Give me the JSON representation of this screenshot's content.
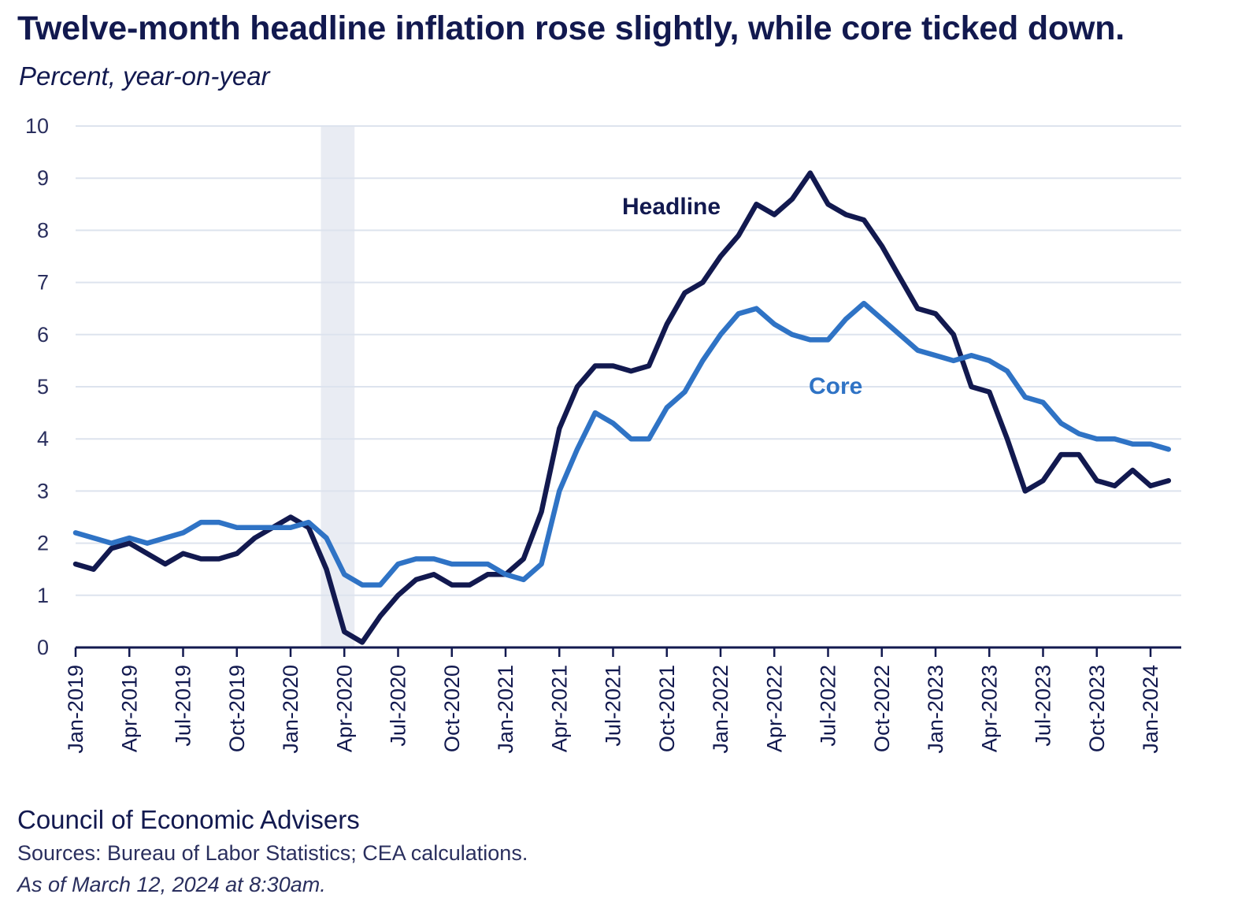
{
  "header": {
    "title": "Twelve-month headline inflation rose slightly, while core ticked down.",
    "subtitle": "Percent, year-on-year"
  },
  "footer": {
    "org": "Council of Economic Advisers",
    "sources": "Sources: Bureau of Labor Statistics; CEA calculations.",
    "as_of": "As of March 12, 2024 at 8:30am."
  },
  "colors": {
    "headline": "#12194f",
    "core": "#2f73c5",
    "grid": "#dde3ee",
    "recession": "#e9ecf3",
    "axis": "#12194f"
  },
  "chart_data": {
    "type": "line",
    "title": "Twelve-month headline inflation rose slightly, while core ticked down.",
    "ylabel": "Percent, year-on-year",
    "ylim": [
      0,
      10
    ],
    "yticks": [
      "0",
      "1",
      "2",
      "3",
      "4",
      "5",
      "6",
      "7",
      "8",
      "9",
      "10"
    ],
    "grid": true,
    "x": [
      "Jan-2019",
      "Feb-2019",
      "Mar-2019",
      "Apr-2019",
      "May-2019",
      "Jun-2019",
      "Jul-2019",
      "Aug-2019",
      "Sep-2019",
      "Oct-2019",
      "Nov-2019",
      "Dec-2019",
      "Jan-2020",
      "Feb-2020",
      "Mar-2020",
      "Apr-2020",
      "May-2020",
      "Jun-2020",
      "Jul-2020",
      "Aug-2020",
      "Sep-2020",
      "Oct-2020",
      "Nov-2020",
      "Dec-2020",
      "Jan-2021",
      "Feb-2021",
      "Mar-2021",
      "Apr-2021",
      "May-2021",
      "Jun-2021",
      "Jul-2021",
      "Aug-2021",
      "Sep-2021",
      "Oct-2021",
      "Nov-2021",
      "Dec-2021",
      "Jan-2022",
      "Feb-2022",
      "Mar-2022",
      "Apr-2022",
      "May-2022",
      "Jun-2022",
      "Jul-2022",
      "Aug-2022",
      "Sep-2022",
      "Oct-2022",
      "Nov-2022",
      "Dec-2022",
      "Jan-2023",
      "Feb-2023",
      "Mar-2023",
      "Apr-2023",
      "May-2023",
      "Jun-2023",
      "Jul-2023",
      "Aug-2023",
      "Sep-2023",
      "Oct-2023",
      "Nov-2023",
      "Dec-2023",
      "Jan-2024",
      "Feb-2024"
    ],
    "xtick_labels": [
      "Jan-2019",
      "Apr-2019",
      "Jul-2019",
      "Oct-2019",
      "Jan-2020",
      "Apr-2020",
      "Jul-2020",
      "Oct-2020",
      "Jan-2021",
      "Apr-2021",
      "Jul-2021",
      "Oct-2021",
      "Jan-2022",
      "Apr-2022",
      "Jul-2022",
      "Oct-2022",
      "Jan-2023",
      "Apr-2023",
      "Jul-2023",
      "Oct-2023",
      "Jan-2024"
    ],
    "shaded_region": [
      "Mar-2020",
      "Apr-2020"
    ],
    "series": [
      {
        "name": "Headline",
        "values": [
          1.6,
          1.5,
          1.9,
          2.0,
          1.8,
          1.6,
          1.8,
          1.7,
          1.7,
          1.8,
          2.1,
          2.3,
          2.5,
          2.3,
          1.5,
          0.3,
          0.1,
          0.6,
          1.0,
          1.3,
          1.4,
          1.2,
          1.2,
          1.4,
          1.4,
          1.7,
          2.6,
          4.2,
          5.0,
          5.4,
          5.4,
          5.3,
          5.4,
          6.2,
          6.8,
          7.0,
          7.5,
          7.9,
          8.5,
          8.3,
          8.6,
          9.1,
          8.5,
          8.3,
          8.2,
          7.7,
          7.1,
          6.5,
          6.4,
          6.0,
          5.0,
          4.9,
          4.0,
          3.0,
          3.2,
          3.7,
          3.7,
          3.2,
          3.1,
          3.4,
          3.1,
          3.2
        ]
      },
      {
        "name": "Core",
        "values": [
          2.2,
          2.1,
          2.0,
          2.1,
          2.0,
          2.1,
          2.2,
          2.4,
          2.4,
          2.3,
          2.3,
          2.3,
          2.3,
          2.4,
          2.1,
          1.4,
          1.2,
          1.2,
          1.6,
          1.7,
          1.7,
          1.6,
          1.6,
          1.6,
          1.4,
          1.3,
          1.6,
          3.0,
          3.8,
          4.5,
          4.3,
          4.0,
          4.0,
          4.6,
          4.9,
          5.5,
          6.0,
          6.4,
          6.5,
          6.2,
          6.0,
          5.9,
          5.9,
          6.3,
          6.6,
          6.3,
          6.0,
          5.7,
          5.6,
          5.5,
          5.6,
          5.5,
          5.3,
          4.8,
          4.7,
          4.3,
          4.1,
          4.0,
          4.0,
          3.9,
          3.9,
          3.8
        ]
      }
    ],
    "annotations": [
      {
        "text": "Headline",
        "series": "Headline"
      },
      {
        "text": "Core",
        "series": "Core"
      }
    ]
  }
}
